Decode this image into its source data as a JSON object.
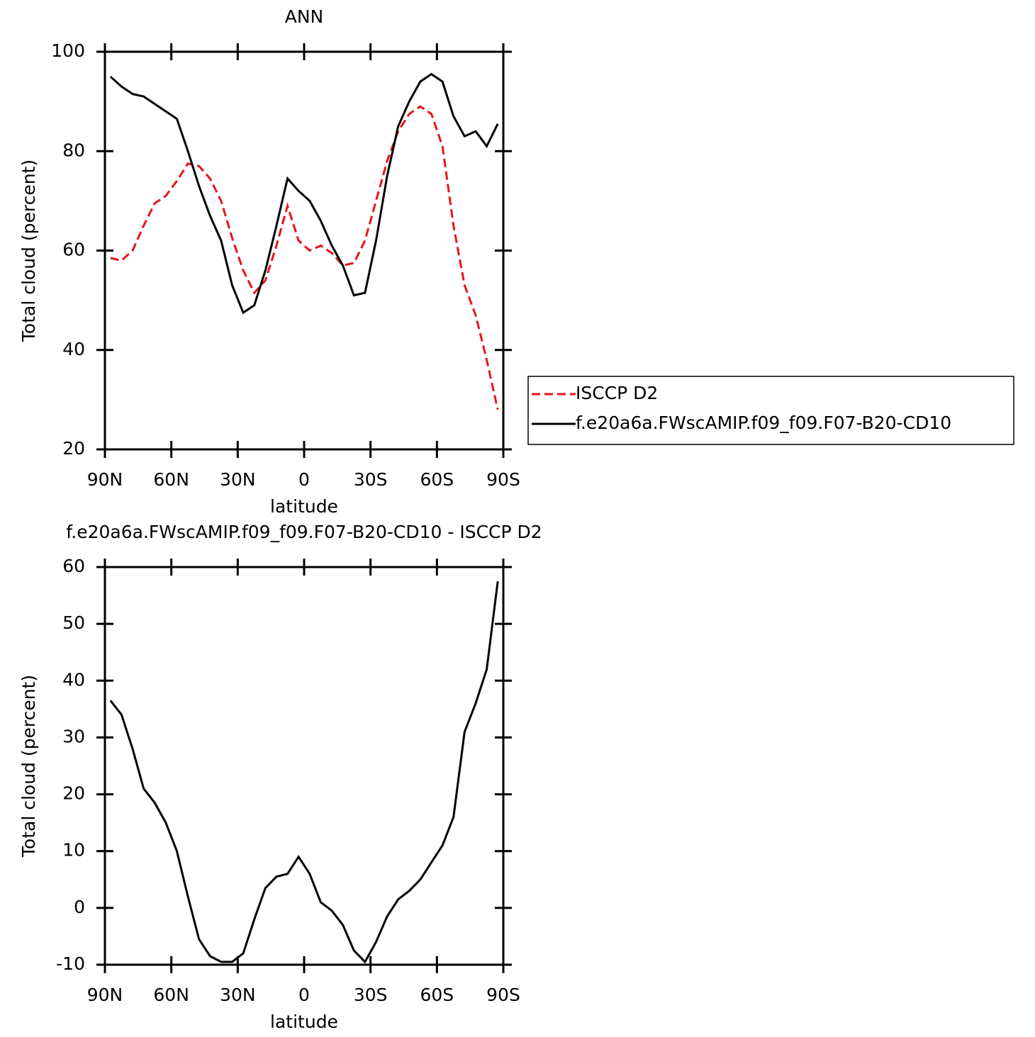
{
  "chart_data": [
    {
      "type": "line",
      "title": "ANN",
      "xlabel": "latitude",
      "ylabel": "Total cloud (percent)",
      "x": [
        87.5,
        82.5,
        77.5,
        72.5,
        67.5,
        62.5,
        57.5,
        52.5,
        47.5,
        42.5,
        37.5,
        32.5,
        27.5,
        22.5,
        17.5,
        12.5,
        7.5,
        2.5,
        -2.5,
        -7.5,
        -12.5,
        -17.5,
        -22.5,
        -27.5,
        -32.5,
        -37.5,
        -42.5,
        -47.5,
        -52.5,
        -57.5,
        -62.5,
        -67.5,
        -72.5,
        -77.5,
        -82.5,
        -87.5
      ],
      "series": [
        {
          "name": "ISCCP D2",
          "color": "#e8141b",
          "dashed": true,
          "values": [
            58.5,
            58,
            60,
            65,
            69.5,
            71,
            74,
            77.5,
            77,
            74.5,
            70,
            62.5,
            56,
            51.5,
            54,
            61,
            69,
            62,
            60,
            61,
            59.5,
            57,
            57.5,
            62,
            70,
            78,
            84,
            87.5,
            89,
            87.5,
            81,
            65,
            53,
            47,
            38,
            28
          ]
        },
        {
          "name": "f.e20a6a.FWscAMIP.f09_f09.F07-B20-CD10",
          "color": "#000000",
          "dashed": false,
          "values": [
            95,
            93,
            91.5,
            91,
            89.5,
            88,
            86.5,
            80,
            73,
            67,
            62,
            53,
            47.5,
            49,
            56,
            65,
            74.5,
            72,
            70,
            66,
            61,
            57,
            51,
            51.5,
            62,
            75,
            85,
            90,
            94,
            95.5,
            94,
            87,
            83,
            84,
            81,
            85.5
          ]
        }
      ],
      "xlim": [
        90,
        -90
      ],
      "xticks": [
        {
          "value": 90,
          "label": "90N"
        },
        {
          "value": 60,
          "label": "60N"
        },
        {
          "value": 30,
          "label": "30N"
        },
        0,
        {
          "value": -30,
          "label": "30S"
        },
        {
          "value": -60,
          "label": "60S"
        },
        {
          "value": -90,
          "label": "90S"
        }
      ],
      "ylim": [
        20,
        100
      ],
      "yticks": [
        20,
        40,
        60,
        80,
        100
      ],
      "legend": true
    },
    {
      "type": "line",
      "title": "f.e20a6a.FWscAMIP.f09_f09.F07-B20-CD10 - ISCCP D2",
      "xlabel": "latitude",
      "ylabel": "Total cloud (percent)",
      "x": [
        87.5,
        82.5,
        77.5,
        72.5,
        67.5,
        62.5,
        57.5,
        52.5,
        47.5,
        42.5,
        37.5,
        32.5,
        27.5,
        22.5,
        17.5,
        12.5,
        7.5,
        2.5,
        -2.5,
        -7.5,
        -12.5,
        -17.5,
        -22.5,
        -27.5,
        -32.5,
        -37.5,
        -42.5,
        -47.5,
        -52.5,
        -57.5,
        -62.5,
        -67.5,
        -72.5,
        -77.5,
        -82.5,
        -87.5
      ],
      "series": [
        {
          "color": "#000000",
          "dashed": false,
          "values": [
            36.5,
            34,
            28,
            21,
            18.5,
            15,
            10,
            2,
            -5.5,
            -8.5,
            -9.5,
            -9.5,
            -8,
            -2,
            3.5,
            5.5,
            6,
            9,
            6,
            1,
            -0.5,
            -3,
            -7.5,
            -9.5,
            -6,
            -1.5,
            1.5,
            3,
            5,
            8,
            11,
            16,
            31,
            36,
            42,
            57.5
          ]
        }
      ],
      "xlim": [
        90,
        -90
      ],
      "xticks": [
        {
          "value": 90,
          "label": "90N"
        },
        {
          "value": 60,
          "label": "60N"
        },
        {
          "value": 30,
          "label": "30N"
        },
        0,
        {
          "value": -30,
          "label": "30S"
        },
        {
          "value": -60,
          "label": "60S"
        },
        {
          "value": -90,
          "label": "90S"
        }
      ],
      "ylim": [
        -10,
        60
      ],
      "yticks": [
        -10,
        0,
        10,
        20,
        30,
        40,
        50,
        60
      ],
      "legend": false
    }
  ]
}
